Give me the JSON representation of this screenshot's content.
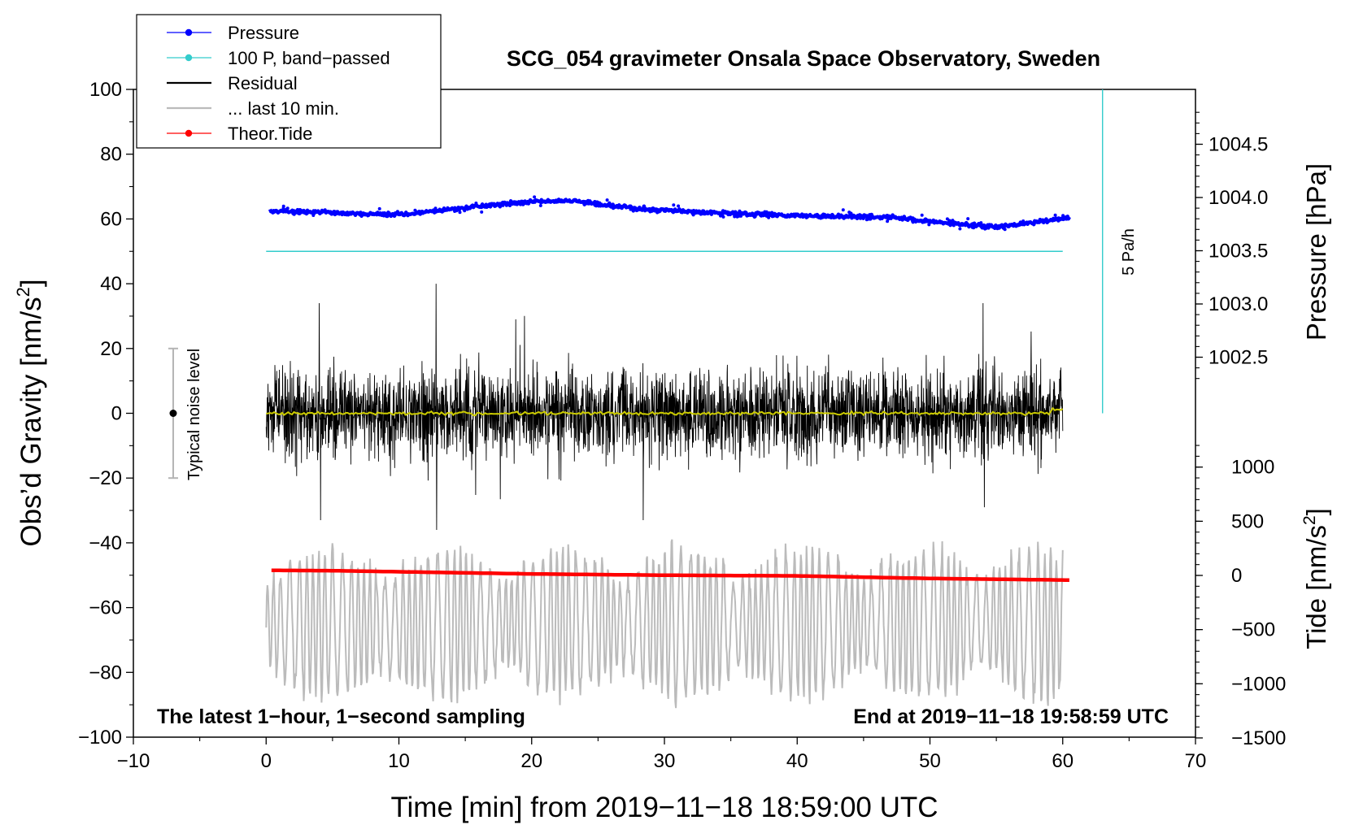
{
  "colors": {
    "pressure": "#0000ff",
    "bandpassed": "#33cccc",
    "residual": "#000000",
    "last10": "#bbbbbb",
    "tide": "#ff0000",
    "smooth": "#cccc00",
    "noise_bar": "#b4b4b4"
  },
  "chart_data": {
    "type": "line",
    "title": "SCG_054 gravimeter Onsala Space Observatory, Sweden",
    "xlabel": "Time [min] from 2019−11−18 18:59:00 UTC",
    "ylabel_main": "Obs’d Gravity [nm/s",
    "ylabel_main_sup": "2",
    "ylabel_main_end": "]",
    "ylabel_pressure": "Pressure [hPa]",
    "ylabel_tide_main": "Tide [nm/s",
    "ylabel_tide_sup": "2",
    "ylabel_tide_end": "]",
    "xlim": [
      -10,
      70
    ],
    "ylim": [
      -100,
      100
    ],
    "xticks": [
      "−10",
      "0",
      "10",
      "20",
      "30",
      "40",
      "50",
      "60",
      "70"
    ],
    "yticks": [
      "−100",
      "−80",
      "−60",
      "−40",
      "−20",
      "0",
      "20",
      "40",
      "60",
      "80",
      "100"
    ],
    "pressure_axis": {
      "ticks": [
        "1002.5",
        "1003.0",
        "1003.5",
        "1004.0",
        "1004.5"
      ],
      "tick_values": [
        1002.5,
        1003.0,
        1003.5,
        1004.0,
        1004.5
      ]
    },
    "tide_axis": {
      "ticks": [
        "−1500",
        "−1000",
        "−500",
        "0",
        "500",
        "1000"
      ],
      "tick_values": [
        -1500,
        -1000,
        -500,
        0,
        500,
        1000
      ]
    },
    "legend": [
      {
        "label": "Pressure",
        "style": "line-dot",
        "color": "#0000ff"
      },
      {
        "label": "100 P, band−passed",
        "style": "line-dot",
        "color": "#33cccc"
      },
      {
        "label": "Residual",
        "style": "line",
        "color": "#000000"
      },
      {
        "label": "... last 10 min.",
        "style": "line",
        "color": "#bbbbbb"
      },
      {
        "label": "Theor.Tide",
        "style": "line-dot",
        "color": "#ff0000"
      }
    ],
    "legend_position": "top-left",
    "annotations": {
      "bottom_left": "The latest 1−hour, 1−second sampling",
      "bottom_right": "End at 2019−11−18 19:58:59 UTC",
      "rate_label": "5 Pa/h",
      "noise_label": "Typical noise level"
    },
    "noise_level": {
      "x": -7,
      "center": 0,
      "low": -20,
      "high": 20
    },
    "rate_line": {
      "x": 63,
      "y_from": 0,
      "y_to": 100
    },
    "series": [
      {
        "name": "Pressure",
        "axis": "left-scaled",
        "x_range": [
          0.3,
          60.5
        ],
        "anchors": [
          [
            0.3,
            62.5
          ],
          [
            10,
            61.3
          ],
          [
            15,
            63.5
          ],
          [
            20,
            65.3
          ],
          [
            23,
            65.5
          ],
          [
            27,
            63.5
          ],
          [
            33,
            62.0
          ],
          [
            40,
            61.0
          ],
          [
            47,
            60.5
          ],
          [
            52,
            58.5
          ],
          [
            55,
            57.5
          ],
          [
            58,
            59.0
          ],
          [
            60.5,
            60.4
          ]
        ]
      },
      {
        "name": "100 P, band−passed",
        "y_level": 50,
        "x_range": [
          0,
          60
        ]
      },
      {
        "name": "Residual",
        "x_range": [
          0,
          60
        ],
        "typical_amplitude": 13,
        "max_peak": 40,
        "min_peak": -36
      },
      {
        "name": "Residual smoothed",
        "x_range": [
          0,
          60
        ],
        "level": 0
      },
      {
        "name": "... last 10 min.",
        "x_range": [
          0,
          60
        ],
        "center": -65,
        "amplitude_range": [
          -92,
          -30
        ]
      },
      {
        "name": "Theor.Tide",
        "x_range": [
          0.4,
          60.5
        ],
        "anchors": [
          [
            0.4,
            -48.5
          ],
          [
            5,
            -48.6
          ],
          [
            20,
            -49.6
          ],
          [
            30,
            -50.0
          ],
          [
            40,
            -50.2
          ],
          [
            50,
            -51.0
          ],
          [
            60.5,
            -51.5
          ]
        ]
      }
    ]
  }
}
